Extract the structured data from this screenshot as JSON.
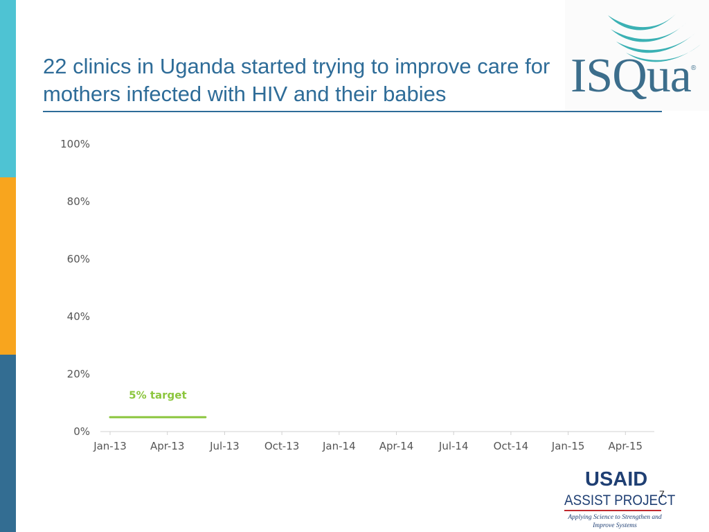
{
  "slide": {
    "title": "22 clinics in Uganda started trying to improve care for mothers infected with HIV and their babies",
    "page_number": "7"
  },
  "logos": {
    "isqua": {
      "name": "ISQua",
      "registered_mark": "®"
    },
    "usaid": {
      "line1": "USAID",
      "line2": "ASSIST PROJECT",
      "tagline": "Applying Science to Strengthen and Improve Systems"
    }
  },
  "colors": {
    "title": "#2e6c98",
    "rule": "#2e6c98",
    "side_top": "#4ec3d3",
    "side_mid": "#f8a51e",
    "side_bot": "#336d92",
    "target": "#8cc63e",
    "axis": "#d0d0d0",
    "logo_teal": "#3bb1b4",
    "logo_blue": "#3c6e8c",
    "usaid_blue": "#1f3f73",
    "usaid_red": "#c0282d"
  },
  "chart_data": {
    "type": "line",
    "categories": [
      "Jan-13",
      "Apr-13",
      "Jul-13",
      "Oct-13",
      "Jan-14",
      "Apr-14",
      "Jul-14",
      "Oct-14",
      "Jan-15",
      "Apr-15"
    ],
    "yticks": [
      "0%",
      "20%",
      "40%",
      "60%",
      "80%",
      "100%"
    ],
    "ylim": [
      0,
      100
    ],
    "grid": false,
    "series": [],
    "target": {
      "label": "5% target",
      "value": 5,
      "x_start": "Jan-13",
      "x_end": "Jun-13"
    }
  }
}
